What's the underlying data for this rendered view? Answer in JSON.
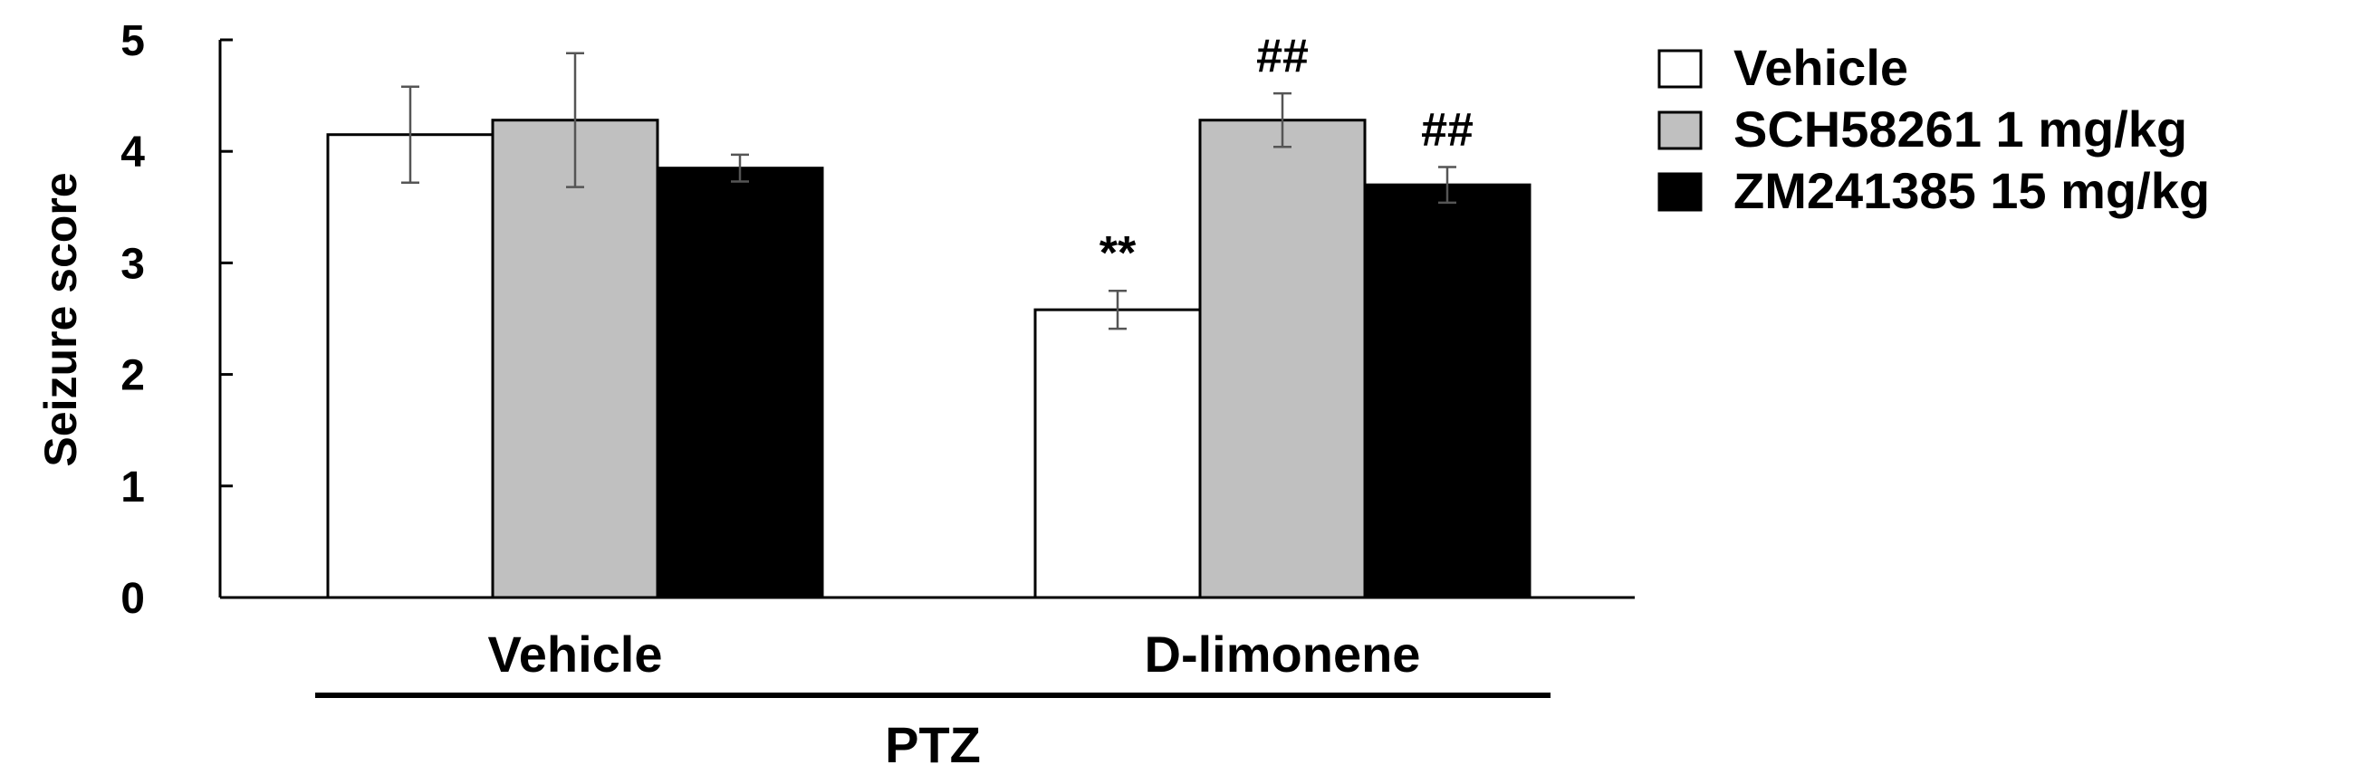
{
  "chart_data": {
    "type": "bar",
    "ylabel": "Seizure score",
    "ylim": [
      0,
      5
    ],
    "yticks": [
      0,
      1,
      2,
      3,
      4,
      5
    ],
    "categories": [
      "Vehicle",
      "D-limonene"
    ],
    "group_label": "PTZ",
    "grid": false,
    "legend_position": "top-right",
    "series": [
      {
        "name": "Vehicle",
        "color": "#ffffff",
        "values": [
          4.15,
          2.58
        ],
        "errors": [
          0.43,
          0.17
        ],
        "annotations": [
          "",
          "**"
        ]
      },
      {
        "name": "SCH58261 1 mg/kg",
        "color": "#c0c0c0",
        "values": [
          4.28,
          4.28
        ],
        "errors": [
          0.6,
          0.24
        ],
        "annotations": [
          "",
          "##"
        ]
      },
      {
        "name": "ZM241385 15 mg/kg",
        "color": "#000000",
        "values": [
          3.85,
          3.7
        ],
        "errors": [
          0.12,
          0.16
        ],
        "annotations": [
          "",
          "##"
        ]
      }
    ]
  }
}
